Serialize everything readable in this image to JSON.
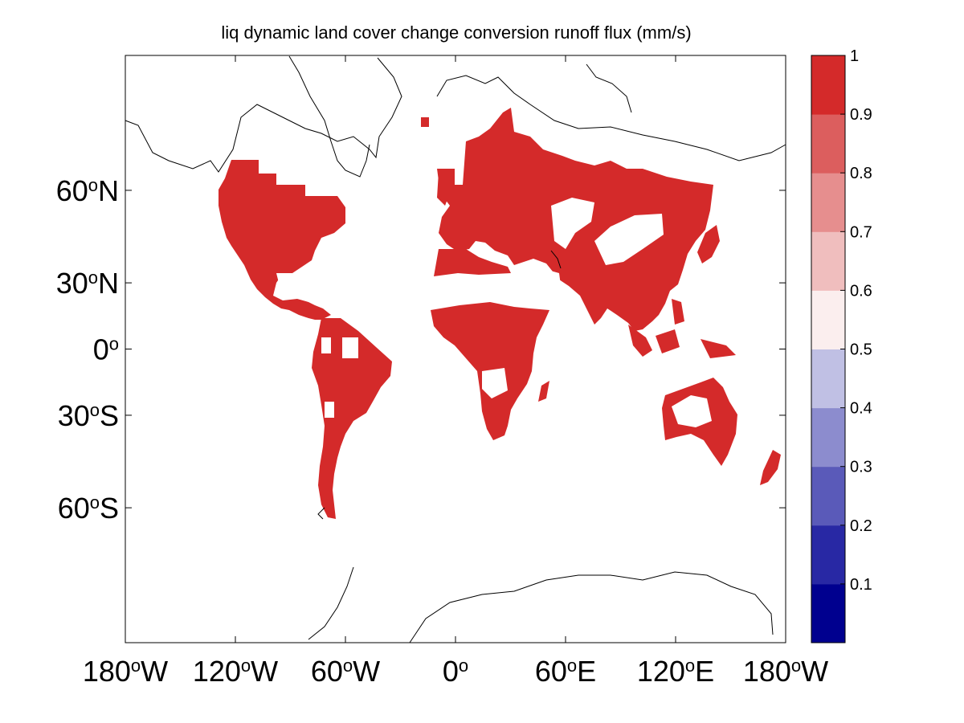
{
  "title": "liq dynamic land cover change conversion runoff flux (mm/s)",
  "lat_ticks": [
    {
      "deg": "60",
      "sup": "o",
      "hem": "N",
      "lat": 60
    },
    {
      "deg": "30",
      "sup": "o",
      "hem": "N",
      "lat": 30
    },
    {
      "deg": "0",
      "sup": "o",
      "hem": "",
      "lat": 0
    },
    {
      "deg": "30",
      "sup": "o",
      "hem": "S",
      "lat": -30
    },
    {
      "deg": "60",
      "sup": "o",
      "hem": "S",
      "lat": -60
    }
  ],
  "lon_ticks": [
    {
      "deg": "180",
      "sup": "o",
      "hem": "W",
      "lon": -180
    },
    {
      "deg": "120",
      "sup": "o",
      "hem": "W",
      "lon": -120
    },
    {
      "deg": "60",
      "sup": "o",
      "hem": "W",
      "lon": -60
    },
    {
      "deg": "0",
      "sup": "o",
      "hem": "",
      "lon": 0
    },
    {
      "deg": "60",
      "sup": "o",
      "hem": "E",
      "lon": 60
    },
    {
      "deg": "120",
      "sup": "o",
      "hem": "E",
      "lon": 120
    },
    {
      "deg": "180",
      "sup": "o",
      "hem": "W",
      "lon": 180
    }
  ],
  "colorbar": {
    "min": 0,
    "max": 1,
    "tick_labels": [
      "0.1",
      "0.2",
      "0.3",
      "0.4",
      "0.5",
      "0.6",
      "0.7",
      "0.8",
      "0.9",
      "1"
    ],
    "colors": [
      "#00008f",
      "#2828a4",
      "#5a5ab9",
      "#8c8cce",
      "#c0c0e4",
      "#fbeeee",
      "#f0bebe",
      "#e68e8e",
      "#dc5e5e",
      "#d42a2a"
    ]
  },
  "chart_data": {
    "type": "heatmap",
    "title": "liq dynamic land cover change conversion runoff flux (mm/s)",
    "projection": "mercator",
    "lon_range": [
      -180,
      180
    ],
    "lat_range": [
      -80,
      80
    ],
    "value_range": [
      0,
      1
    ],
    "dominant_value": 1,
    "description_of_field": "Vegetated land cells have value ~1 (dark red); ocean, deserts, Greenland and Antarctica have no data (white).",
    "land_color": "#d42a2a",
    "regions_value_1": [
      "North America",
      "Central America",
      "South America",
      "Europe",
      "Africa",
      "Asia",
      "Southeast Asia",
      "Australia",
      "New Zealand"
    ],
    "no_data_regions": [
      "Greenland",
      "Sahara",
      "Arabian Peninsula",
      "Gobi / Taklamakan",
      "Central Australia",
      "Antarctica",
      "Amazon interior patches",
      "Canadian Arctic"
    ]
  }
}
